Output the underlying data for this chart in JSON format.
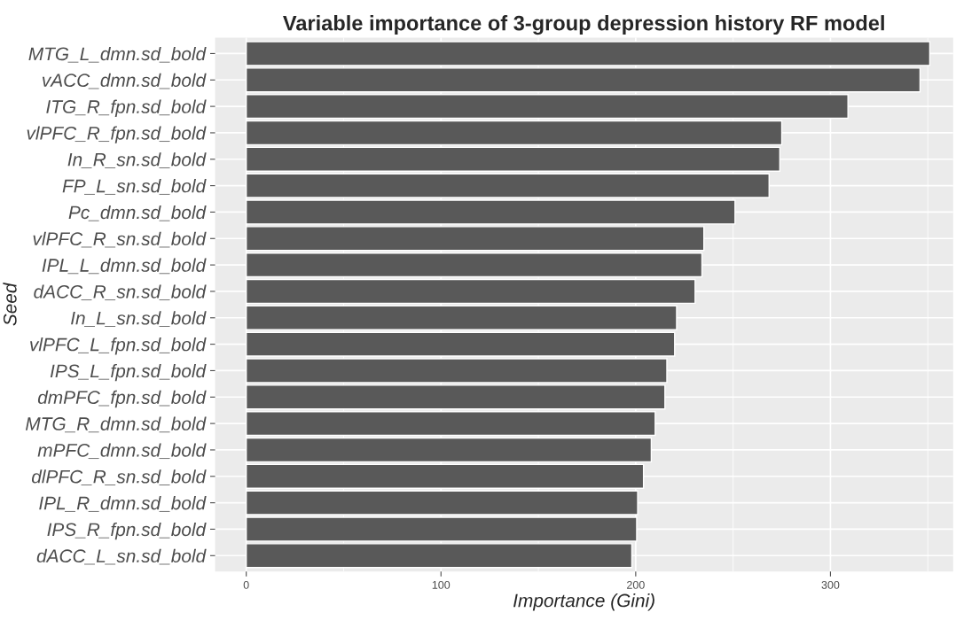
{
  "chart_data": {
    "type": "bar",
    "orientation": "horizontal",
    "title": "Variable importance of 3-group depression history RF model",
    "xlabel": "Importance (Gini)",
    "ylabel": "Seed",
    "categories": [
      "MTG_L_dmn.sd_bold",
      "vACC_dmn.sd_bold",
      "ITG_R_fpn.sd_bold",
      "vlPFC_R_fpn.sd_bold",
      "In_R_sn.sd_bold",
      "FP_L_sn.sd_bold",
      "Pc_dmn.sd_bold",
      "vlPFC_R_sn.sd_bold",
      "IPL_L_dmn.sd_bold",
      "dACC_R_sn.sd_bold",
      "In_L_sn.sd_bold",
      "vlPFC_L_fpn.sd_bold",
      "IPS_L_fpn.sd_bold",
      "dmPFC_fpn.sd_bold",
      "MTG_R_dmn.sd_bold",
      "mPFC_dmn.sd_bold",
      "dlPFC_R_sn.sd_bold",
      "IPL_R_dmn.sd_bold",
      "IPS_R_fpn.sd_bold",
      "dACC_L_sn.sd_bold"
    ],
    "values": [
      351,
      346,
      309,
      275,
      274,
      268.5,
      251,
      235,
      234,
      230.5,
      221,
      220,
      216,
      215,
      210,
      208,
      204,
      201,
      200.5,
      198
    ],
    "color": "#595959",
    "xlim": [
      -16,
      363
    ],
    "xticks": [
      0,
      100,
      200,
      300
    ],
    "grid": true
  }
}
